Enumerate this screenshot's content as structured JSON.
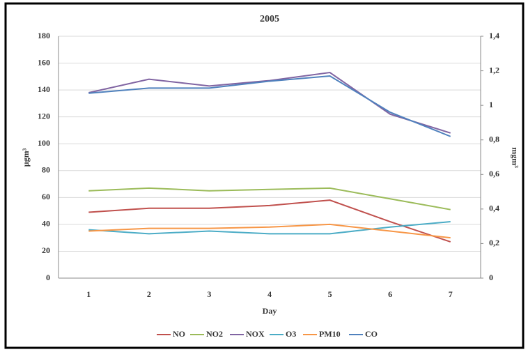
{
  "chart_data": {
    "type": "line",
    "title": "2005",
    "x_label": "Day",
    "y_label": "µgm³",
    "y2_label": "mgm³",
    "categories": [
      "1",
      "2",
      "3",
      "4",
      "5",
      "6",
      "7"
    ],
    "series": [
      {
        "name": "NO",
        "color": "#c0504d",
        "values": [
          49,
          52,
          52,
          54,
          58,
          42,
          27
        ]
      },
      {
        "name": "NO2",
        "color": "#9bbb59",
        "values": [
          65,
          67,
          65,
          66,
          67,
          59,
          51
        ]
      },
      {
        "name": "NOX",
        "color": "#8064a2",
        "values": [
          138,
          148,
          143,
          147,
          153,
          122,
          108
        ]
      },
      {
        "name": "O3",
        "color": "#4bacc6",
        "values": [
          36,
          33,
          35,
          33,
          33,
          38,
          42
        ]
      },
      {
        "name": "PM10",
        "color": "#f79646",
        "values": [
          35,
          37,
          37,
          38,
          40,
          35,
          30
        ]
      },
      {
        "name": "CO",
        "color": "#4f81bd",
        "axis": "y2",
        "values": [
          1.07,
          1.1,
          1.1,
          1.14,
          1.17,
          0.96,
          0.82
        ]
      }
    ],
    "ylim": [
      0,
      180
    ],
    "yticks": [
      0,
      20,
      40,
      60,
      80,
      100,
      120,
      140,
      160,
      180
    ],
    "y2lim": [
      0,
      1.4
    ],
    "y2ticks": [
      0,
      {
        "value": 0.2,
        "label": "0,2"
      },
      {
        "value": 0.4,
        "label": "0,4"
      },
      {
        "value": 0.6,
        "label": "0,6"
      },
      {
        "value": 0.8,
        "label": "0,8"
      },
      1,
      {
        "value": 1.2,
        "label": "1,2"
      },
      {
        "value": 1.4,
        "label": "1,4"
      }
    ],
    "grid": true,
    "legend": "bottom"
  }
}
